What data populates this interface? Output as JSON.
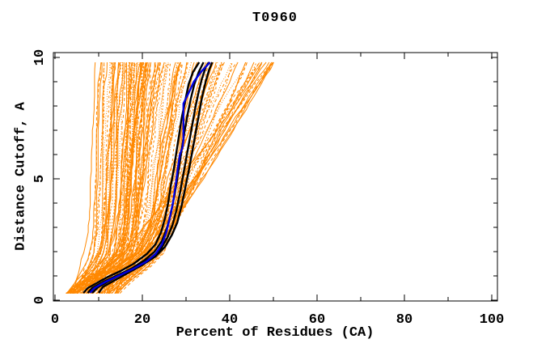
{
  "chart_data": {
    "type": "line",
    "title": "T0960",
    "xlabel": "Percent of Residues (CA)",
    "ylabel": "Distance Cutoff, A",
    "xlim": [
      0,
      102
    ],
    "ylim": [
      0,
      10.25
    ],
    "grid": false,
    "legend": "none",
    "x_ticks_major": [
      0,
      20,
      40,
      60,
      80,
      100
    ],
    "x_ticks_minor": [
      10,
      30,
      50,
      70,
      90
    ],
    "y_ticks_major": [
      0,
      5,
      10
    ],
    "y_ticks_minor": [
      1,
      2,
      3,
      4,
      6,
      7,
      8,
      9
    ],
    "colors": {
      "orange": "#ff8800",
      "black": "#000000",
      "blue": "#0000dd",
      "frame": "#000000",
      "background": "#ffffff"
    },
    "series": {
      "blue_model": {
        "name": "blue-model-curve",
        "color": "#0000dd",
        "width": 2.4,
        "points": [
          [
            8,
            0.3
          ],
          [
            9,
            0.5
          ],
          [
            11.5,
            0.75
          ],
          [
            14.5,
            1.0
          ],
          [
            18,
            1.3
          ],
          [
            21,
            1.6
          ],
          [
            23,
            1.9
          ],
          [
            24.5,
            2.3
          ],
          [
            25.5,
            2.8
          ],
          [
            26.3,
            3.4
          ],
          [
            27,
            4.0
          ],
          [
            27.6,
            4.7
          ],
          [
            28.1,
            5.4
          ],
          [
            28.6,
            6.0
          ],
          [
            29.2,
            6.3
          ],
          [
            29.4,
            6.6
          ],
          [
            29.4,
            8.1
          ],
          [
            30.5,
            8.5
          ],
          [
            31.8,
            9.0
          ],
          [
            33.4,
            9.4
          ],
          [
            35.5,
            9.8
          ]
        ]
      },
      "black_models": {
        "name": "black-model-curves",
        "color": "#000000",
        "width": 2.4,
        "curves": [
          [
            [
              6.5,
              0.3
            ],
            [
              7.5,
              0.5
            ],
            [
              9.5,
              0.7
            ],
            [
              12,
              0.95
            ],
            [
              15,
              1.2
            ],
            [
              18,
              1.5
            ],
            [
              21,
              1.9
            ],
            [
              23,
              2.3
            ],
            [
              24.3,
              2.8
            ],
            [
              25.2,
              3.4
            ],
            [
              25.9,
              4.0
            ],
            [
              26.5,
              4.7
            ],
            [
              27.2,
              5.4
            ],
            [
              27.8,
              6.1
            ],
            [
              28.4,
              6.8
            ],
            [
              29.0,
              7.5
            ],
            [
              29.8,
              8.2
            ],
            [
              30.6,
              8.9
            ],
            [
              31.6,
              9.4
            ],
            [
              33,
              9.8
            ]
          ],
          [
            [
              7.5,
              0.3
            ],
            [
              8.5,
              0.5
            ],
            [
              11,
              0.75
            ],
            [
              14,
              1.0
            ],
            [
              17.5,
              1.3
            ],
            [
              20.5,
              1.65
            ],
            [
              22.8,
              2.0
            ],
            [
              24.5,
              2.45
            ],
            [
              25.6,
              2.95
            ],
            [
              26.5,
              3.55
            ],
            [
              27.2,
              4.2
            ],
            [
              27.9,
              4.9
            ],
            [
              28.5,
              5.6
            ],
            [
              29.1,
              6.3
            ],
            [
              29.7,
              7.0
            ],
            [
              30.4,
              7.7
            ],
            [
              31.1,
              8.3
            ],
            [
              31.9,
              8.9
            ],
            [
              32.9,
              9.4
            ],
            [
              34,
              9.8
            ]
          ],
          [
            [
              8.5,
              0.3
            ],
            [
              10,
              0.55
            ],
            [
              12.5,
              0.8
            ],
            [
              15.5,
              1.1
            ],
            [
              19,
              1.4
            ],
            [
              22,
              1.75
            ],
            [
              24.2,
              2.1
            ],
            [
              25.8,
              2.6
            ],
            [
              26.9,
              3.1
            ],
            [
              27.8,
              3.7
            ],
            [
              28.6,
              4.4
            ],
            [
              29.3,
              5.1
            ],
            [
              30,
              5.8
            ],
            [
              30.7,
              6.5
            ],
            [
              31.4,
              7.2
            ],
            [
              32.1,
              7.9
            ],
            [
              32.8,
              8.5
            ],
            [
              33.6,
              9.1
            ],
            [
              34.5,
              9.6
            ],
            [
              35.2,
              9.8
            ]
          ],
          [
            [
              10,
              0.3
            ],
            [
              11,
              0.55
            ],
            [
              13.5,
              0.8
            ],
            [
              16.5,
              1.1
            ],
            [
              20,
              1.45
            ],
            [
              23,
              1.8
            ],
            [
              25.2,
              2.2
            ],
            [
              26.8,
              2.7
            ],
            [
              28,
              3.2
            ],
            [
              29,
              3.9
            ],
            [
              29.8,
              4.6
            ],
            [
              30.6,
              5.3
            ],
            [
              31.4,
              6.1
            ],
            [
              32.2,
              6.9
            ],
            [
              33,
              7.7
            ],
            [
              33.7,
              8.4
            ],
            [
              34.5,
              9.0
            ],
            [
              35.3,
              9.5
            ],
            [
              36,
              9.8
            ]
          ]
        ]
      },
      "orange_ensemble": {
        "name": "orange-model-ensemble",
        "color": "#ff8800",
        "width": 1,
        "count": 135,
        "seed": 1234,
        "y_start": 0.28,
        "y_end": 9.8,
        "x_bottom_range": [
          2.5,
          15
        ],
        "x_span_range": [
          5,
          45
        ],
        "span_exponent": 1.6,
        "x_top_max": 50,
        "fan_blend_start": 28,
        "fan_blend_span": 22,
        "profile": [
          [
            0,
            0
          ],
          [
            0.03,
            0.1
          ],
          [
            0.07,
            0.25
          ],
          [
            0.12,
            0.45
          ],
          [
            0.18,
            0.62
          ],
          [
            0.25,
            0.7
          ],
          [
            0.35,
            0.76
          ],
          [
            0.5,
            0.81
          ],
          [
            0.65,
            0.86
          ],
          [
            0.8,
            0.91
          ],
          [
            0.9,
            0.95
          ],
          [
            1,
            1
          ]
        ],
        "dash_patterns": [
          "",
          "",
          "2 2",
          "3 3",
          "4 3",
          "1 2"
        ]
      }
    }
  }
}
